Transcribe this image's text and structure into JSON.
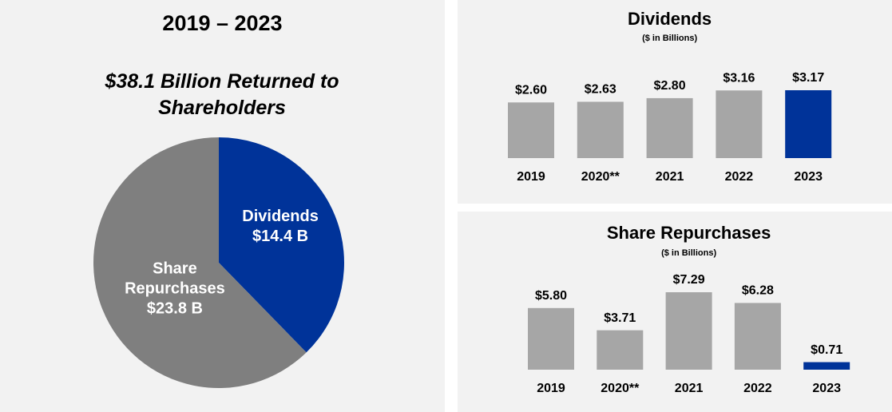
{
  "chart_data": [
    {
      "type": "pie",
      "title": "2019 – 2023",
      "subtitle": "$38.1 Billion Returned to Shareholders",
      "categories": [
        "Dividends",
        "Share Repurchases"
      ],
      "values": [
        14.4,
        23.8
      ],
      "value_labels": [
        "$14.4 B",
        "$23.8 B"
      ],
      "colors": [
        "#003399",
        "#7f7f7f"
      ]
    },
    {
      "type": "bar",
      "title": "Dividends",
      "subtitle": "($ in Billions)",
      "categories": [
        "2019",
        "2020**",
        "2021",
        "2022",
        "2023"
      ],
      "values": [
        2.6,
        2.63,
        2.8,
        3.16,
        3.17
      ],
      "value_labels": [
        "$2.60",
        "$2.63",
        "$2.80",
        "$3.16",
        "$3.17"
      ],
      "colors": [
        "#a6a6a6",
        "#a6a6a6",
        "#a6a6a6",
        "#a6a6a6",
        "#003399"
      ]
    },
    {
      "type": "bar",
      "title": "Share Repurchases",
      "subtitle": "($ in Billions)",
      "categories": [
        "2019",
        "2020**",
        "2021",
        "2022",
        "2023"
      ],
      "values": [
        5.8,
        3.71,
        7.29,
        6.28,
        0.71
      ],
      "value_labels": [
        "$5.80",
        "$3.71",
        "$7.29",
        "$6.28",
        "$0.71"
      ],
      "colors": [
        "#a6a6a6",
        "#a6a6a6",
        "#a6a6a6",
        "#a6a6a6",
        "#003399"
      ]
    }
  ]
}
